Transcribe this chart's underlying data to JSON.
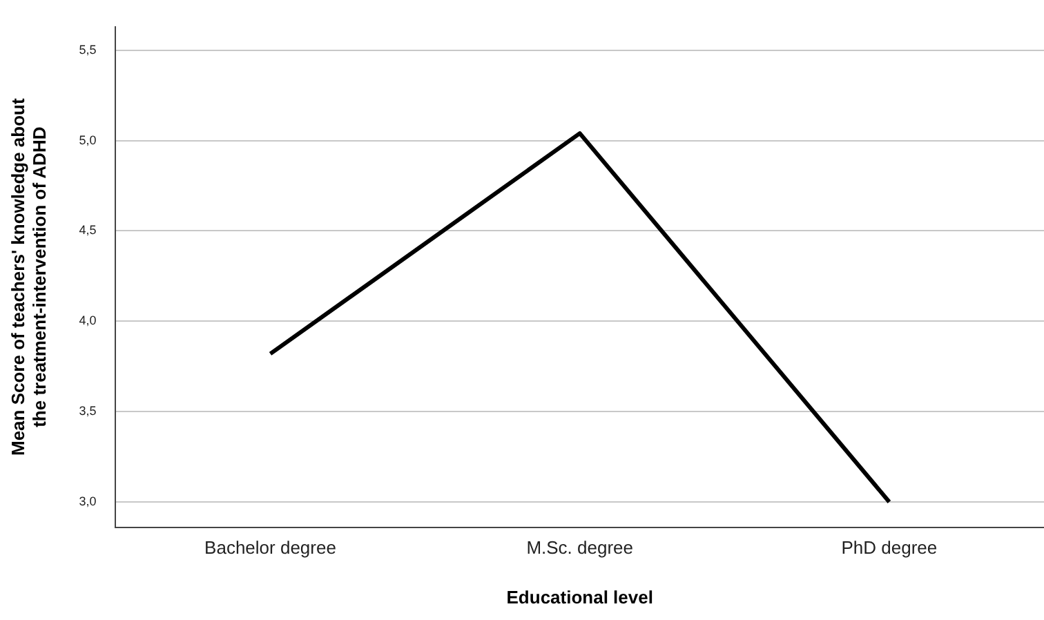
{
  "chart_data": {
    "type": "line",
    "xlabel": "Educational level",
    "ylabel": "Mean Score of teachers' knowledge about the treatment-intervention of ADHD",
    "categories": [
      "Bachelor degree",
      "M.Sc. degree",
      "PhD degree"
    ],
    "series": [
      {
        "color": "#000000",
        "values": [
          3.82,
          5.04,
          3.0
        ]
      }
    ],
    "ylim": [
      2.86,
      5.63
    ],
    "yticks": [
      {
        "value": 3.0,
        "label": "3,0"
      },
      {
        "value": 3.5,
        "label": "3,5"
      },
      {
        "value": 4.0,
        "label": "4,0"
      },
      {
        "value": 4.5,
        "label": "4,5"
      },
      {
        "value": 5.0,
        "label": "5,0"
      },
      {
        "value": 5.5,
        "label": "5,5"
      }
    ],
    "grid": "y",
    "legend": false,
    "marker": "none",
    "line_style": "solid"
  }
}
